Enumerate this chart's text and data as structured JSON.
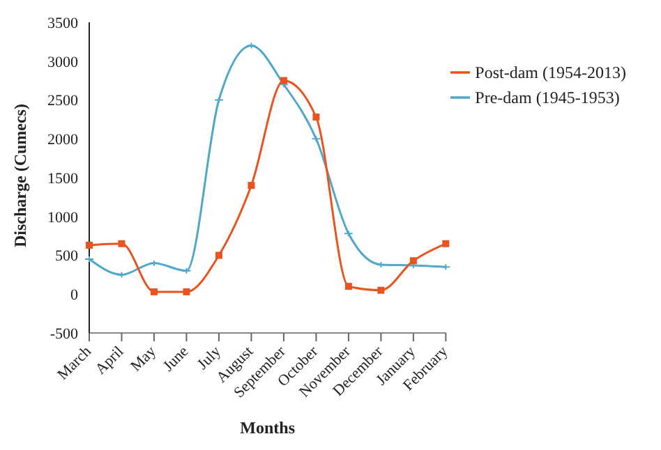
{
  "chart_data": {
    "type": "line",
    "xlabel": "Months",
    "ylabel": "Discharge (Cumecs)",
    "categories": [
      "March",
      "April",
      "May",
      "June",
      "July",
      "August",
      "September",
      "October",
      "November",
      "December",
      "January",
      "February"
    ],
    "series": [
      {
        "name": "Pre-dam (1945-1953)",
        "color": "#4fa8c8",
        "marker": "cross",
        "values": [
          450,
          250,
          400,
          300,
          2500,
          3200,
          2700,
          2000,
          780,
          380,
          370,
          350
        ]
      },
      {
        "name": "Post-dam (1954-2013)",
        "color": "#e8531f",
        "marker": "square",
        "values": [
          630,
          650,
          30,
          30,
          500,
          1400,
          2750,
          2280,
          100,
          50,
          430,
          650
        ]
      }
    ],
    "ylim": [
      -500,
      3500
    ],
    "yticks": [
      -500,
      0,
      500,
      1000,
      1500,
      2000,
      2500,
      3000,
      3500
    ],
    "legend": "top right",
    "line_style": "solid"
  }
}
